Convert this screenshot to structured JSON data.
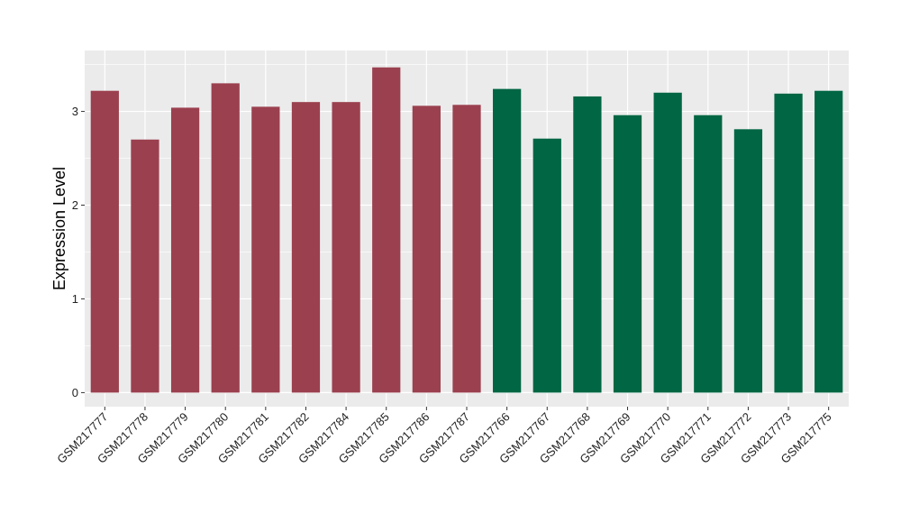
{
  "chart_data": {
    "type": "bar",
    "title": "",
    "xlabel": "",
    "ylabel": "Expression Level",
    "ylim": [
      -0.15,
      3.65
    ],
    "yticks": [
      0,
      1,
      2,
      3
    ],
    "grid": true,
    "legend": "none",
    "panel_background": "#ebebeb",
    "grid_color": "#ffffff",
    "categories": [
      "GSM217777",
      "GSM217778",
      "GSM217779",
      "GSM217780",
      "GSM217781",
      "GSM217782",
      "GSM217784",
      "GSM217785",
      "GSM217786",
      "GSM217787",
      "GSM217766",
      "GSM217767",
      "GSM217768",
      "GSM217769",
      "GSM217770",
      "GSM217771",
      "GSM217772",
      "GSM217773",
      "GSM217775"
    ],
    "values": [
      3.22,
      2.7,
      3.04,
      3.3,
      3.05,
      3.1,
      3.1,
      3.47,
      3.06,
      3.07,
      3.24,
      2.71,
      3.16,
      2.96,
      3.2,
      2.96,
      2.81,
      3.19,
      3.22
    ],
    "group_colors": {
      "group1": "#9b404f",
      "group2": "#006643"
    },
    "bar_groups": [
      "group1",
      "group1",
      "group1",
      "group1",
      "group1",
      "group1",
      "group1",
      "group1",
      "group1",
      "group1",
      "group2",
      "group2",
      "group2",
      "group2",
      "group2",
      "group2",
      "group2",
      "group2",
      "group2"
    ]
  }
}
